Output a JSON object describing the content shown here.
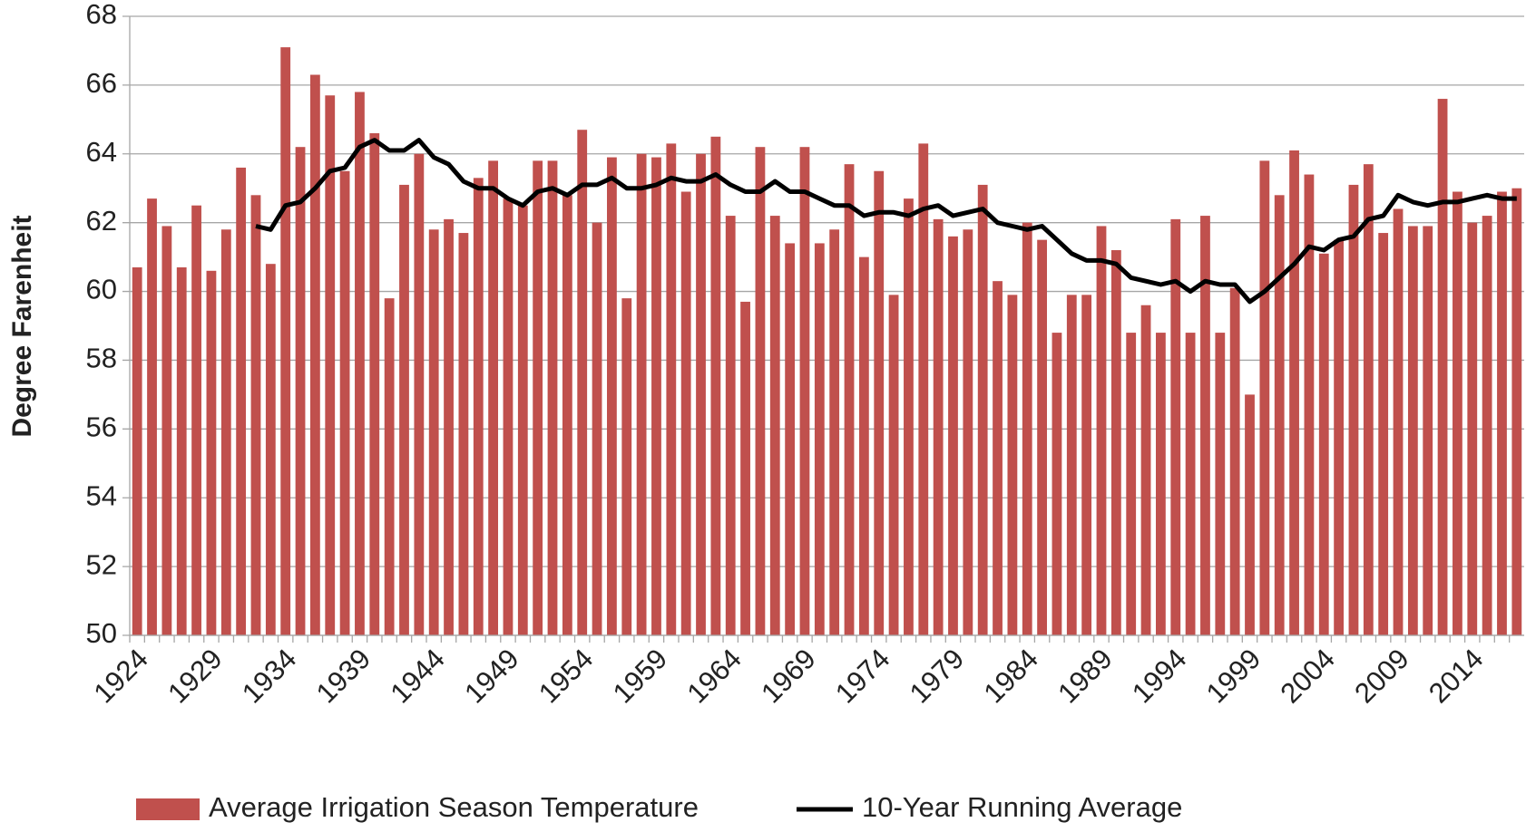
{
  "chart_data": {
    "type": "bar",
    "ylabel": "Degree Farenheit",
    "categories": [
      "1924",
      null,
      null,
      null,
      null,
      "1929",
      null,
      null,
      null,
      null,
      "1934",
      null,
      null,
      null,
      null,
      "1939",
      null,
      null,
      null,
      null,
      "1944",
      null,
      null,
      null,
      null,
      "1949",
      null,
      null,
      null,
      null,
      "1954",
      null,
      null,
      null,
      null,
      "1959",
      null,
      null,
      null,
      null,
      "1964",
      null,
      null,
      null,
      null,
      "1969",
      null,
      null,
      null,
      null,
      "1974",
      null,
      null,
      null,
      null,
      "1979",
      null,
      null,
      null,
      null,
      "1984",
      null,
      null,
      null,
      null,
      "1989",
      null,
      null,
      null,
      null,
      "1994",
      null,
      null,
      null,
      null,
      "1999",
      null,
      null,
      null,
      null,
      "2004",
      null,
      null,
      null,
      null,
      "2009",
      null,
      null,
      null,
      null,
      "2014",
      null,
      null,
      null
    ],
    "series": [
      {
        "name": "Average Irrigation Season Temperature",
        "type": "bar",
        "color": "#c0504d",
        "values": [
          60.7,
          62.7,
          61.9,
          60.7,
          62.5,
          60.6,
          61.8,
          63.6,
          62.8,
          60.8,
          67.1,
          64.2,
          66.3,
          65.7,
          63.5,
          65.8,
          64.6,
          59.8,
          63.1,
          64.0,
          61.8,
          62.1,
          61.7,
          63.3,
          63.8,
          62.7,
          62.5,
          63.8,
          63.8,
          62.8,
          64.7,
          62.0,
          63.9,
          59.8,
          64.0,
          63.9,
          64.3,
          62.9,
          64.0,
          64.5,
          62.2,
          59.7,
          64.2,
          62.2,
          61.4,
          64.2,
          61.4,
          61.8,
          63.7,
          61.0,
          63.5,
          59.9,
          62.7,
          64.3,
          62.1,
          61.6,
          61.8,
          63.1,
          60.3,
          59.9,
          62.0,
          61.5,
          58.8,
          59.9,
          59.9,
          61.9,
          61.2,
          58.8,
          59.6,
          58.8,
          62.1,
          58.8,
          62.2,
          58.8,
          60.1,
          57.0,
          63.8,
          62.8,
          64.1,
          63.4,
          61.1,
          61.5,
          63.1,
          63.7,
          61.7,
          62.4,
          61.9,
          61.9,
          65.6,
          62.9,
          62.0,
          62.2,
          62.9,
          63.0
        ]
      },
      {
        "name": "10-Year Running Average",
        "type": "line",
        "color": "#000000",
        "values": [
          null,
          null,
          null,
          null,
          null,
          null,
          null,
          null,
          61.9,
          61.8,
          62.5,
          62.6,
          63.0,
          63.5,
          63.6,
          64.2,
          64.4,
          64.1,
          64.1,
          64.4,
          63.9,
          63.7,
          63.2,
          63.0,
          63.0,
          62.7,
          62.5,
          62.9,
          63.0,
          62.8,
          63.1,
          63.1,
          63.3,
          63.0,
          63.0,
          63.1,
          63.3,
          63.2,
          63.2,
          63.4,
          63.1,
          62.9,
          62.9,
          63.2,
          62.9,
          62.9,
          62.7,
          62.5,
          62.5,
          62.2,
          62.3,
          62.3,
          62.2,
          62.4,
          62.5,
          62.2,
          62.3,
          62.4,
          62.0,
          61.9,
          61.8,
          61.9,
          61.5,
          61.1,
          60.9,
          60.9,
          60.8,
          60.4,
          60.3,
          60.2,
          60.3,
          60.0,
          60.3,
          60.2,
          60.2,
          59.7,
          60.0,
          60.4,
          60.8,
          61.3,
          61.2,
          61.5,
          61.6,
          62.1,
          62.2,
          62.8,
          62.6,
          62.5,
          62.6,
          62.6,
          62.7,
          62.8,
          62.7,
          62.7
        ]
      }
    ],
    "ylim": [
      50,
      68
    ],
    "yticks": [
      50,
      52,
      54,
      56,
      58,
      60,
      62,
      64,
      66,
      68
    ],
    "grid": true,
    "legend": "bottom"
  }
}
